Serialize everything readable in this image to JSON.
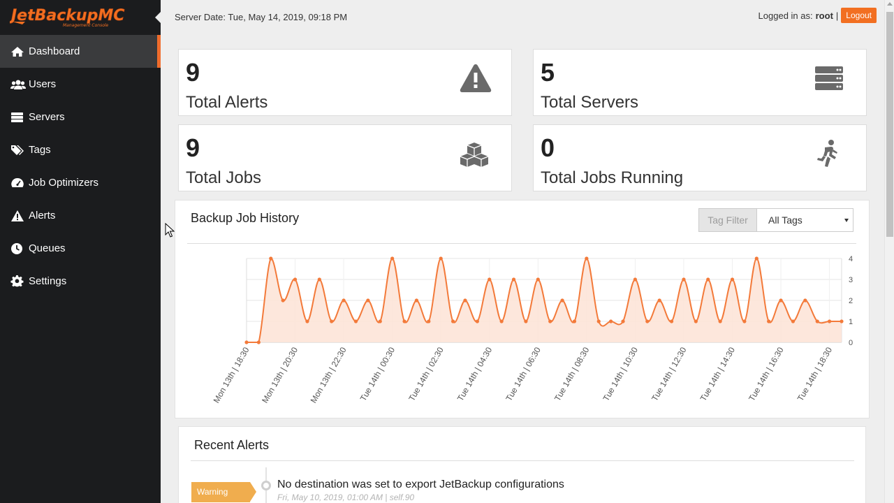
{
  "app": {
    "logo_text": "JetBackupMC",
    "logo_subtext": "Management Console"
  },
  "sidebar": {
    "items": [
      {
        "label": "Dashboard",
        "icon": "home-icon",
        "active": true
      },
      {
        "label": "Users",
        "icon": "users-icon"
      },
      {
        "label": "Servers",
        "icon": "servers-icon"
      },
      {
        "label": "Tags",
        "icon": "tags-icon"
      },
      {
        "label": "Job Optimizers",
        "icon": "dashboard-gauge-icon"
      },
      {
        "label": "Alerts",
        "icon": "warning-icon"
      },
      {
        "label": "Queues",
        "icon": "clock-icon"
      },
      {
        "label": "Settings",
        "icon": "gear-icon"
      }
    ]
  },
  "topbar": {
    "server_date": "Server Date: Tue, May 14, 2019, 09:18 PM",
    "logged_in_label": "Logged in as:",
    "username": "root",
    "separator": "|",
    "logout_label": "Logout"
  },
  "stats": [
    {
      "value": "9",
      "label": "Total Alerts",
      "icon": "warning-icon"
    },
    {
      "value": "5",
      "label": "Total Servers",
      "icon": "server-stack-icon"
    },
    {
      "value": "9",
      "label": "Total Jobs",
      "icon": "cubes-icon"
    },
    {
      "value": "0",
      "label": "Total Jobs Running",
      "icon": "running-person-icon"
    }
  ],
  "chart_panel": {
    "title": "Backup Job History",
    "tag_filter_label": "Tag Filter",
    "tag_select_value": "All Tags"
  },
  "colors": {
    "accent": "#f26f21",
    "line": "#f37a3a",
    "fill": "#fde3d6",
    "warning": "#f0ad4e"
  },
  "chart_data": {
    "type": "area",
    "title": "Backup Job History",
    "x": [
      "Mon 13th | 18:30",
      "Mon 13th | 19:00",
      "Mon 13th | 19:30",
      "Mon 13th | 20:00",
      "Mon 13th | 20:30",
      "Mon 13th | 21:00",
      "Mon 13th | 21:30",
      "Mon 13th | 22:00",
      "Mon 13th | 22:30",
      "Mon 13th | 23:00",
      "Mon 13th | 23:30",
      "Tue 14th | 00:00",
      "Tue 14th | 00:30",
      "Tue 14th | 01:00",
      "Tue 14th | 01:30",
      "Tue 14th | 02:00",
      "Tue 14th | 02:30",
      "Tue 14th | 03:00",
      "Tue 14th | 03:30",
      "Tue 14th | 04:00",
      "Tue 14th | 04:30",
      "Tue 14th | 05:00",
      "Tue 14th | 05:30",
      "Tue 14th | 06:00",
      "Tue 14th | 06:30",
      "Tue 14th | 07:00",
      "Tue 14th | 07:30",
      "Tue 14th | 08:00",
      "Tue 14th | 08:30",
      "Tue 14th | 09:00",
      "Tue 14th | 09:30",
      "Tue 14th | 10:00",
      "Tue 14th | 10:30",
      "Tue 14th | 11:00",
      "Tue 14th | 11:30",
      "Tue 14th | 12:00",
      "Tue 14th | 12:30",
      "Tue 14th | 13:00",
      "Tue 14th | 13:30",
      "Tue 14th | 14:00",
      "Tue 14th | 14:30",
      "Tue 14th | 15:00",
      "Tue 14th | 15:30",
      "Tue 14th | 16:00",
      "Tue 14th | 16:30",
      "Tue 14th | 17:00",
      "Tue 14th | 17:30",
      "Tue 14th | 18:00",
      "Tue 14th | 18:30",
      "Tue 14th | 19:00"
    ],
    "tick_labels": [
      "Mon 13th | 18:30",
      "Mon 13th | 20:30",
      "Mon 13th | 22:30",
      "Tue 14th | 00:30",
      "Tue 14th | 02:30",
      "Tue 14th | 04:30",
      "Tue 14th | 06:30",
      "Tue 14th | 08:30",
      "Tue 14th | 10:30",
      "Tue 14th | 12:30",
      "Tue 14th | 14:30",
      "Tue 14th | 16:30",
      "Tue 14th | 18:30"
    ],
    "values": [
      0,
      0,
      4,
      2,
      3,
      1,
      3,
      1,
      2,
      1,
      2,
      1,
      4,
      1,
      2,
      1,
      4,
      1,
      2,
      1,
      3,
      1,
      3,
      1,
      3,
      1,
      2,
      1,
      4,
      1,
      1,
      1,
      3,
      1,
      2,
      1,
      3,
      1,
      3,
      1,
      3,
      1,
      4,
      1,
      2,
      1,
      2,
      1,
      1,
      1
    ],
    "ylim": [
      0,
      4
    ],
    "yticks": [
      "0",
      "1",
      "2",
      "3",
      "4"
    ],
    "y_axis_side": "right",
    "grid": true
  },
  "recent_alerts": {
    "title": "Recent Alerts",
    "items": [
      {
        "badge": "Warning",
        "message": "No destination was set to export JetBackup configurations",
        "meta": "Fri, May 10, 2019, 01:00 AM | self.90"
      }
    ]
  }
}
